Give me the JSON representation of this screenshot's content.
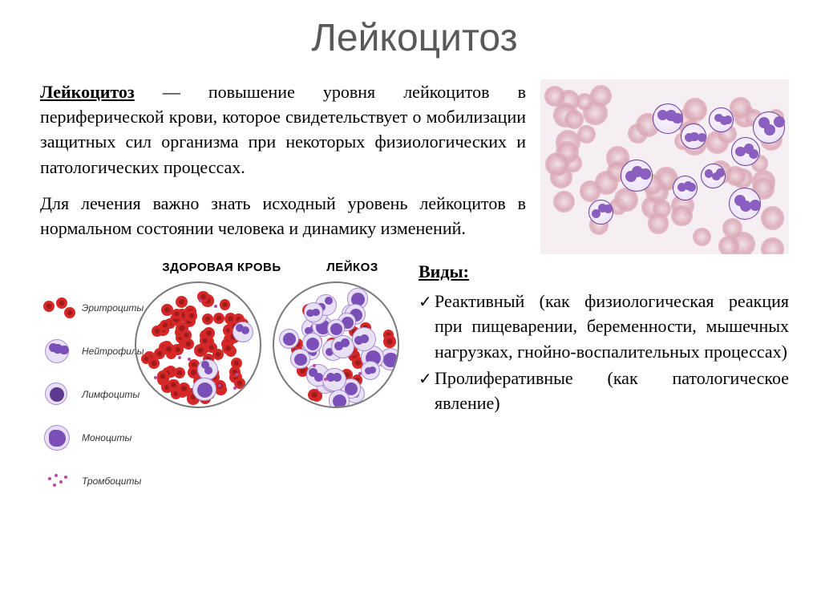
{
  "title": "Лейкоцитоз",
  "definition": {
    "term": "Лейкоцитоз",
    "text1_after": " — повышение уровня лейкоцитов в периферической крови, которое свидетельствует о мобилизации защитных сил организма при некоторых физиологических и патологических процессах.",
    "text2": "Для лечения важно знать исходный уровень лейкоцитов в нормальном состоянии человека и динамику изменений."
  },
  "types": {
    "heading": "Виды:",
    "items": [
      "Реактивный (как физиологическая реакция при пищеварении, беременности, мышечных нагрузках, гнойно-воспалительных процессах)",
      "Пролиферативные (как патологическое явление)"
    ]
  },
  "compare": {
    "healthy_title": "ЗДОРОВАЯ КРОВЬ",
    "leukemia_title": "ЛЕЙКОЗ",
    "legend": {
      "erythrocytes": "Эритроциты",
      "neutrophils": "Нейтрофилы",
      "lymphocytes": "Лимфоциты",
      "monocytes": "Моноциты",
      "thrombocytes": "Тромбоциты"
    }
  },
  "colors": {
    "rbc_fill": "#d62828",
    "rbc_dark": "#9e1b1b",
    "wbc_fill": "#e8e0f5",
    "wbc_stroke": "#a78dd0",
    "nucleus": "#7a4fb8",
    "nucleus_dark": "#5b3a8f",
    "platelet": "#b84aa0",
    "smear_rbc": "#d9a6b4",
    "smear_wbc": "#8a5fc0",
    "smear_stroke": "#6a4098",
    "title_color": "#595959",
    "circle_stroke": "#7a7a7a",
    "bg": "#ffffff"
  },
  "smear": {
    "rbc_count": 60,
    "wbc_count": 10
  },
  "dishes": {
    "healthy": {
      "rbc": 85,
      "wbc": 3,
      "platelets": 8
    },
    "leukemia": {
      "rbc": 22,
      "wbc": 28,
      "platelets": 3
    }
  },
  "fonts": {
    "title_pt": 48,
    "body_pt": 22,
    "legend_pt": 12,
    "compare_title_pt": 15
  }
}
